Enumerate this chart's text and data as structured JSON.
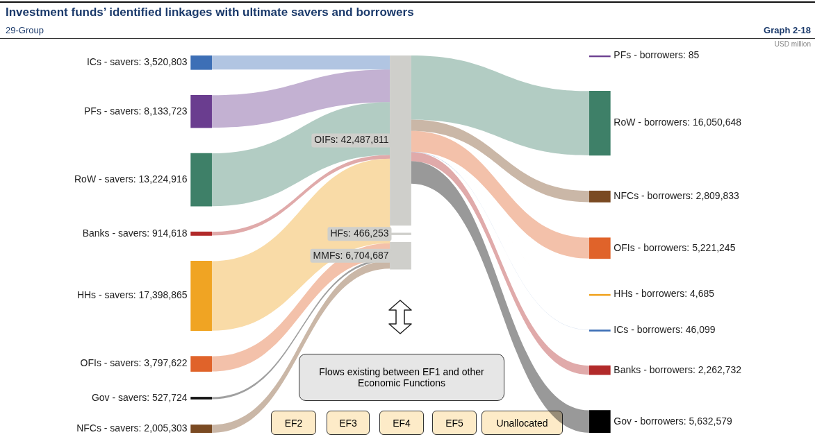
{
  "chart_data": {
    "type": "other",
    "title": "Investment funds’ identified linkages with ultimate savers and borrowers",
    "subtitle": "29-Group",
    "categories": [
      "ICs - savers",
      "PFs - savers",
      "RoW - savers",
      "Banks - savers",
      "HHs - savers",
      "OFIs - savers",
      "Gov - savers",
      "NFCs - savers",
      "OIFs",
      "HFs",
      "MMFs",
      "PFs - borrowers",
      "RoW - borrowers",
      "NFCs - borrowers",
      "OFIs - borrowers",
      "HHs - borrowers",
      "ICs - borrowers",
      "Banks - borrowers",
      "Gov - borrowers"
    ],
    "series": [
      {
        "values": [
          3520803,
          8133723,
          13224916,
          914618,
          17398865,
          3797622,
          527724,
          2005303,
          null,
          null,
          null,
          null,
          null,
          null,
          null,
          null,
          null,
          null,
          null
        ],
        "value_labels": [
          ": 3,520,803",
          ": 8,133,723",
          ": 13,224,916",
          ": 914,618",
          ": 17,398,865",
          ": 3,797,622",
          ": 527,724",
          ": 2,005,303",
          null,
          null,
          null,
          null,
          null,
          null,
          null,
          null,
          null,
          null,
          null
        ]
      },
      {
        "values": [
          null,
          null,
          null,
          null,
          null,
          null,
          null,
          null,
          42487811,
          466253,
          6704687,
          null,
          null,
          null,
          null,
          null,
          null,
          null,
          null
        ],
        "value_labels": [
          null,
          null,
          null,
          null,
          null,
          null,
          null,
          null,
          ": 42,487,811",
          ": 466,253",
          ": 6,704,687",
          null,
          null,
          null,
          null,
          null,
          null,
          null,
          null
        ]
      },
      {
        "values": [
          null,
          null,
          null,
          null,
          null,
          null,
          null,
          null,
          null,
          null,
          null,
          85,
          16050648,
          2809833,
          5221245,
          4685,
          46099,
          2262732,
          5632579
        ],
        "value_labels": [
          null,
          null,
          null,
          null,
          null,
          null,
          null,
          null,
          null,
          null,
          null,
          ": 85",
          ": 16,050,648",
          ": 2,809,833",
          ": 5,221,245",
          ": 4,685",
          ": 46,099",
          ": 2,262,732",
          ": 5,632,579"
        ]
      }
    ],
    "colors": [
      "#3d6fb6",
      "#6a3d8f",
      "#3e8068",
      "#b22a2a",
      "#f0a423",
      "#e0632a",
      "#111111",
      "#7a4a22",
      "#cfcfcb",
      "#cfcfcb",
      "#cfcfcb",
      "#6a3d8f",
      "#3e8068",
      "#7a4a22",
      "#e0632a",
      "#f0a423",
      "#3d6fb6",
      "#b22a2a",
      "#000000"
    ],
    "annotations": [
      "Graph 2-18",
      "USD million",
      "Flows existing between EF1 and other Economic Functions",
      "EF2",
      "EF3",
      "EF4",
      "EF5",
      "Unallocated"
    ]
  }
}
